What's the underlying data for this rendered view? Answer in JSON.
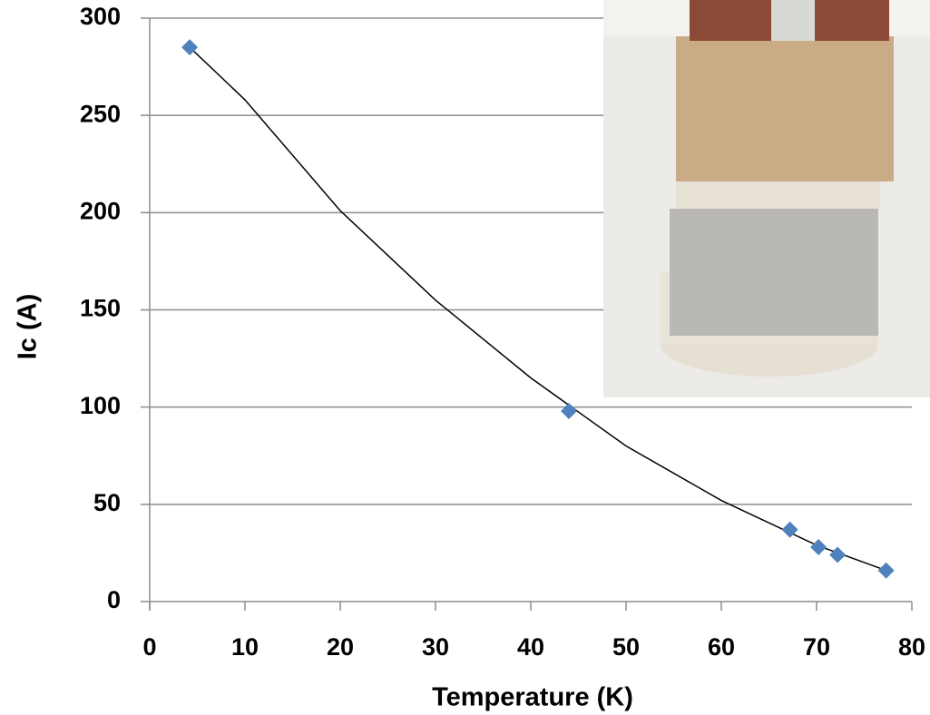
{
  "chart_data": {
    "type": "scatter",
    "xlabel": "Temperature (K)",
    "ylabel": "Ic (A)",
    "x": [
      4.2,
      44,
      67.2,
      70.2,
      72.2,
      77.3
    ],
    "values": [
      285,
      98,
      37,
      28,
      24,
      16
    ],
    "color": "#4f81bd",
    "trendline": {
      "x": [
        4.2,
        10,
        20,
        30,
        40,
        50,
        60,
        70,
        77.3
      ],
      "values": [
        285,
        258,
        201,
        155,
        115,
        80,
        52,
        29,
        16
      ],
      "color": "#000000"
    },
    "xlim": [
      0,
      80
    ],
    "ylim": [
      0,
      300
    ],
    "xticks": [
      0,
      10,
      20,
      30,
      40,
      50,
      60,
      70,
      80
    ],
    "yticks": [
      0,
      50,
      100,
      150,
      200,
      250,
      300
    ],
    "grid": true
  }
}
